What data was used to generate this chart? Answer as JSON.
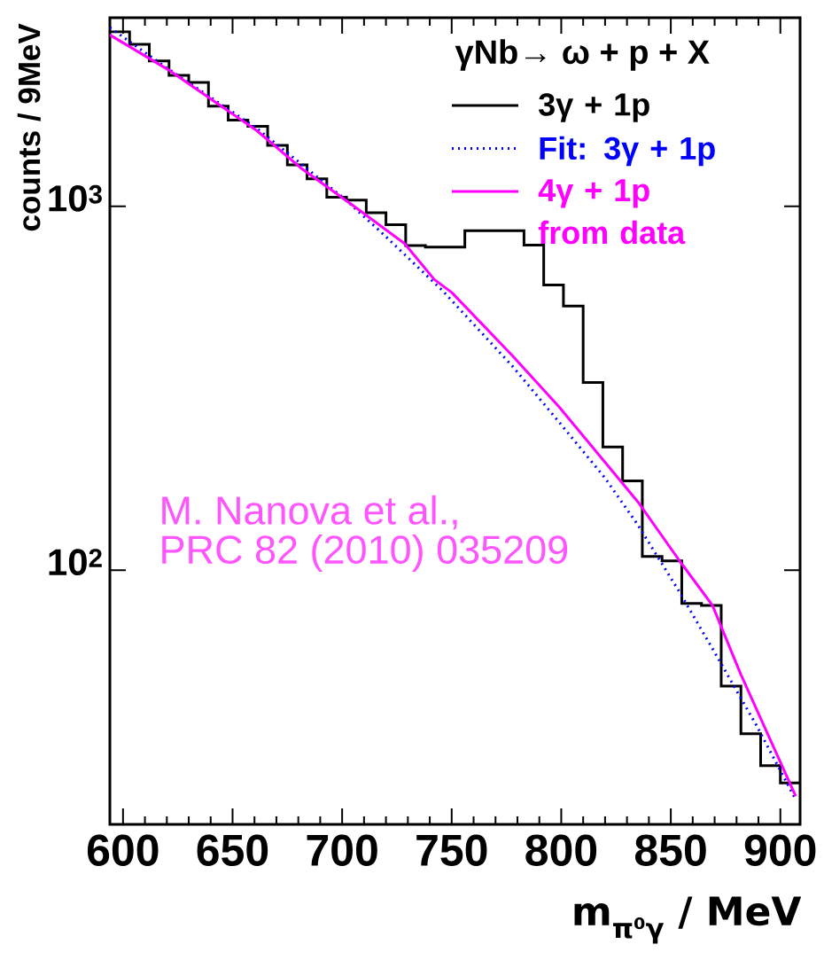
{
  "chart_data": {
    "type": "histogram",
    "xlabel": "m$_{π⁰γ}$ / MeV",
    "ylabel": "counts / 9MeV",
    "legend_title": "γNb→ ω + p + X",
    "annotations": [
      "M. Nanova et al.,",
      "PRC 82 (2010) 035209"
    ],
    "series": [
      {
        "name": "3γ + 1p",
        "color": "#000000",
        "bins": [
          594,
          603,
          612,
          621,
          630,
          639,
          648,
          657,
          666,
          675,
          684,
          693,
          702,
          711,
          720,
          729,
          738,
          747,
          756,
          765,
          774,
          783,
          792,
          801,
          810,
          819,
          828,
          837,
          846,
          855,
          864,
          873,
          882,
          891,
          900,
          909
        ],
        "values": [
          3020,
          2790,
          2510,
          2290,
          2190,
          1885,
          1725,
          1660,
          1470,
          1300,
          1190,
          1060,
          1040,
          960,
          890,
          780,
          773,
          773,
          857,
          857,
          857,
          783,
          608,
          532,
          328,
          218,
          176,
          109,
          106,
          81,
          80,
          48,
          35.5,
          29,
          26
        ]
      },
      {
        "name": "Fit: 3γ + 1p",
        "type": "line",
        "color": "#0000ff",
        "line_style": "dotted",
        "x": [
          594,
          620,
          661,
          701,
          719,
          746,
          778,
          800,
          820,
          835,
          854,
          871,
          889,
          907
        ],
        "values": [
          3100,
          2400,
          1640,
          1050,
          836,
          585,
          362,
          251,
          179,
          133,
          87,
          58,
          37.5,
          23.4
        ]
      },
      {
        "name": "**4γ + 1p** from data",
        "type": "line",
        "color": "#ff00ff",
        "line_style": "solid",
        "x": [
          594,
          620.6,
          661,
          681,
          705.5,
          728.5,
          742,
          750,
          778,
          799,
          835,
          854,
          869,
          882,
          907
        ],
        "values": [
          2960,
          2375,
          1616,
          1277,
          1000,
          790,
          630,
          580,
          387,
          281,
          154,
          106,
          80,
          51.6,
          23.9
        ]
      }
    ],
    "xlim": [
      594,
      909
    ],
    "ylim": [
      20,
      3300
    ],
    "log": true,
    "xticks": [
      600,
      650,
      700,
      750,
      800,
      850,
      900
    ],
    "yticks": [
      {
        "value": 100,
        "label": "10$^{2}$"
      },
      {
        "value": 1000,
        "label": "10$^{3}$"
      }
    ],
    "legend": "top right"
  }
}
